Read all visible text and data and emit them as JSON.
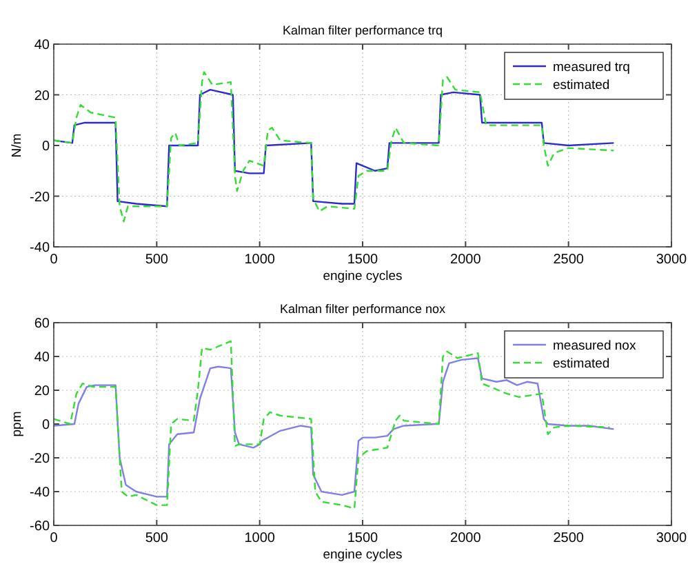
{
  "chart_data": [
    {
      "type": "line",
      "title": "Kalman filter performance trq",
      "xlabel": "engine cycles",
      "ylabel": "N/m",
      "xlim": [
        0,
        3000
      ],
      "xticks": [
        0,
        500,
        1000,
        1500,
        2000,
        2500,
        3000
      ],
      "ylim": [
        -40,
        40
      ],
      "yticks": [
        -40,
        -20,
        0,
        20,
        40
      ],
      "grid": true,
      "legend": "top right",
      "series": [
        {
          "name": "measured trq",
          "color": "#2b2bd0",
          "line_style": "solid",
          "x": [
            0,
            90,
            100,
            150,
            300,
            310,
            400,
            550,
            560,
            700,
            710,
            760,
            870,
            880,
            950,
            1020,
            1030,
            1250,
            1260,
            1400,
            1460,
            1470,
            1500,
            1560,
            1620,
            1630,
            1870,
            1880,
            1940,
            2070,
            2080,
            2300,
            2370,
            2380,
            2500,
            2720
          ],
          "values": [
            2,
            1,
            8,
            9,
            9,
            -22,
            -23,
            -24,
            0,
            0,
            20,
            22,
            20,
            -10,
            -11,
            -11,
            0,
            1,
            -22,
            -23,
            -23,
            -7,
            -8,
            -10,
            -9,
            1,
            1,
            20,
            21,
            20,
            9,
            9,
            9,
            1,
            0,
            1
          ]
        },
        {
          "name": "estimated",
          "color": "#33dd33",
          "line_style": "dashed",
          "x": [
            0,
            90,
            110,
            130,
            180,
            300,
            320,
            340,
            360,
            550,
            570,
            590,
            610,
            700,
            720,
            730,
            770,
            860,
            880,
            890,
            920,
            950,
            1020,
            1040,
            1060,
            1100,
            1250,
            1260,
            1290,
            1330,
            1460,
            1480,
            1520,
            1620,
            1640,
            1660,
            1700,
            1870,
            1890,
            1910,
            1950,
            2070,
            2100,
            2370,
            2380,
            2400,
            2430,
            2500,
            2720
          ],
          "values": [
            2,
            1,
            11,
            16,
            13,
            11,
            -24,
            -30,
            -24,
            -24,
            3,
            5,
            0,
            1,
            25,
            29,
            24,
            25,
            -12,
            -18,
            -10,
            -6,
            -8,
            6,
            7,
            2,
            1,
            -21,
            -26,
            -24,
            -25,
            -12,
            -10,
            -10,
            2,
            7,
            1,
            0,
            26,
            27,
            22,
            21,
            8,
            8,
            0,
            -8,
            -3,
            -1,
            -2
          ]
        }
      ]
    },
    {
      "type": "line",
      "title": "Kalman filter performance nox",
      "xlabel": "engine cycles",
      "ylabel": "ppm",
      "xlim": [
        0,
        3000
      ],
      "xticks": [
        0,
        500,
        1000,
        1500,
        2000,
        2500,
        3000
      ],
      "ylim": [
        -60,
        60
      ],
      "yticks": [
        -60,
        -40,
        -20,
        0,
        20,
        40,
        60
      ],
      "grid": true,
      "legend": "top right",
      "series": [
        {
          "name": "measured nox",
          "color": "#7f7fe6",
          "line_style": "solid",
          "x": [
            0,
            100,
            120,
            160,
            200,
            300,
            320,
            350,
            400,
            500,
            550,
            560,
            600,
            680,
            710,
            760,
            800,
            860,
            880,
            900,
            970,
            1000,
            1010,
            1100,
            1200,
            1250,
            1260,
            1300,
            1400,
            1460,
            1480,
            1500,
            1560,
            1620,
            1650,
            1700,
            1850,
            1870,
            1890,
            1920,
            1980,
            2060,
            2080,
            2150,
            2200,
            2250,
            2300,
            2350,
            2380,
            2400,
            2500,
            2600,
            2720
          ],
          "values": [
            -1,
            0,
            12,
            22,
            23,
            23,
            -20,
            -36,
            -40,
            -43,
            -43,
            -12,
            -6,
            -5,
            15,
            33,
            34,
            33,
            -5,
            -12,
            -14,
            -12,
            -10,
            -4,
            -1,
            -2,
            -30,
            -40,
            -42,
            -40,
            -10,
            -8,
            -8,
            -7,
            -3,
            -1,
            0,
            0,
            25,
            36,
            38,
            39,
            27,
            25,
            26,
            23,
            25,
            24,
            3,
            0,
            -1,
            -1,
            -3
          ]
        },
        {
          "name": "estimated",
          "color": "#33dd33",
          "line_style": "dashed",
          "x": [
            0,
            80,
            110,
            140,
            190,
            300,
            330,
            360,
            400,
            500,
            550,
            570,
            600,
            680,
            700,
            720,
            760,
            860,
            880,
            900,
            1000,
            1020,
            1050,
            1100,
            1250,
            1270,
            1300,
            1400,
            1460,
            1480,
            1520,
            1620,
            1660,
            1680,
            1700,
            1870,
            1890,
            1910,
            1960,
            2060,
            2080,
            2200,
            2260,
            2370,
            2400,
            2430,
            2500,
            2700
          ],
          "values": [
            3,
            0,
            18,
            24,
            22,
            22,
            -40,
            -43,
            -42,
            -48,
            -48,
            0,
            3,
            2,
            20,
            45,
            44,
            49,
            -13,
            -12,
            -12,
            3,
            7,
            5,
            3,
            -40,
            -46,
            -48,
            -50,
            -20,
            -16,
            -14,
            2,
            5,
            2,
            0,
            40,
            43,
            39,
            42,
            24,
            18,
            16,
            18,
            -6,
            -2,
            -1,
            -2
          ]
        }
      ]
    }
  ]
}
